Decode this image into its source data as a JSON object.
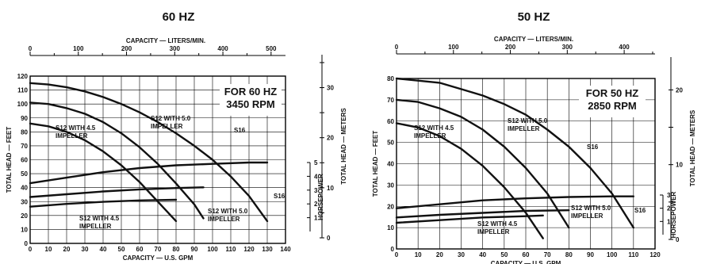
{
  "charts": [
    {
      "id": "c60",
      "heading": "60 HZ",
      "box_line1": "FOR 60 HZ",
      "box_line2": "3450 RPM",
      "top_axis_label": "CAPACITY — LITERS/MIN.",
      "bottom_axis_label": "CAPACITY — U.S. GPM",
      "left_axis_label": "TOTAL HEAD — FEET",
      "right_axis_label_hp": "HORSEPOWER",
      "right_axis_label_m": "TOTAL HEAD — METERS",
      "x_ticks": [
        0,
        10,
        20,
        30,
        40,
        50,
        60,
        70,
        80,
        90,
        100,
        110,
        120,
        130,
        140
      ],
      "y_ticks": [
        0,
        10,
        20,
        30,
        40,
        50,
        60,
        70,
        80,
        90,
        100,
        110,
        120
      ],
      "top_ticks": [
        0,
        100,
        200,
        300,
        400,
        500
      ],
      "meter_ticks": [
        0,
        10,
        20,
        30
      ],
      "hp_ticks": [
        1,
        2,
        3,
        4,
        5
      ],
      "annotations": {
        "s12_45_head": "S12 WITH 4.5\nIMPELLER",
        "s12_50_head": "S12 WITH 5.0\nIMPELLER",
        "s16_head": "S16",
        "s16_hp": "S16",
        "s12_50_hp": "S12 WITH 5.0\nIMPELLER",
        "s12_45_hp": "S12 WITH 4.5\nIMPELLER"
      }
    },
    {
      "id": "c50",
      "heading": "50 HZ",
      "box_line1": "FOR 50 HZ",
      "box_line2": "2850 RPM",
      "top_axis_label": "CAPACITY — LITERS/MIN.",
      "bottom_axis_label": "CAPACITY — U.S. GPM",
      "left_axis_label": "TOTAL HEAD — FEET",
      "right_axis_label_hp": "HORSEPOWER",
      "right_axis_label_m": "TOTAL HEAD — METERS",
      "x_ticks": [
        0,
        10,
        20,
        30,
        40,
        50,
        60,
        70,
        80,
        90,
        100,
        110,
        120
      ],
      "y_ticks": [
        0,
        10,
        20,
        30,
        40,
        50,
        60,
        70,
        80
      ],
      "top_ticks": [
        0,
        100,
        200,
        300,
        400
      ],
      "meter_ticks": [
        0,
        10,
        20
      ],
      "hp_ticks": [
        1,
        2,
        3
      ],
      "annotations": {
        "s12_45_head": "S12 WITH 4.5\nIMPELLER",
        "s12_50_head": "S12 WITH 5.0\nIMPELLER",
        "s16_head": "S16",
        "s16_hp": "S16",
        "s12_50_hp": "S12 WITH 5.0\nIMPELLER",
        "s12_45_hp": "S12 WITH 4.5\nIMPELLER"
      }
    }
  ],
  "chart_data": [
    {
      "type": "line",
      "title": "60 HZ",
      "xlabel": "CAPACITY — U.S. GPM",
      "ylabel": "TOTAL HEAD — FEET",
      "xlim": [
        0,
        140
      ],
      "ylim": [
        0,
        120
      ],
      "grid": true,
      "series": [
        {
          "name": "S12 WITH 4.5 IMPELLER",
          "kind": "head",
          "x": [
            0,
            10,
            20,
            30,
            40,
            50,
            60,
            70,
            80
          ],
          "y": [
            86,
            84,
            80,
            74,
            66,
            56,
            44,
            30,
            16
          ]
        },
        {
          "name": "S12 WITH 5.0 IMPELLER",
          "kind": "head",
          "x": [
            0,
            10,
            20,
            30,
            40,
            50,
            60,
            70,
            80,
            90,
            95
          ],
          "y": [
            101,
            100,
            97,
            93,
            87,
            79,
            69,
            57,
            43,
            28,
            18
          ]
        },
        {
          "name": "S16",
          "kind": "head",
          "x": [
            0,
            10,
            20,
            30,
            40,
            50,
            60,
            70,
            80,
            90,
            100,
            110,
            120,
            130
          ],
          "y": [
            115,
            114,
            112,
            109,
            105,
            100,
            94,
            87,
            79,
            70,
            60,
            48,
            34,
            16
          ]
        },
        {
          "name": "S16",
          "kind": "hp",
          "x": [
            0,
            20,
            40,
            60,
            80,
            100,
            120,
            130
          ],
          "y": [
            3.5,
            3.9,
            4.3,
            4.6,
            4.8,
            4.9,
            5.0,
            5.0
          ]
        },
        {
          "name": "S12 WITH 5.0 IMPELLER",
          "kind": "hp",
          "x": [
            0,
            20,
            40,
            60,
            80,
            95
          ],
          "y": [
            2.5,
            2.7,
            2.9,
            3.05,
            3.15,
            3.2
          ]
        },
        {
          "name": "S12 WITH 4.5 IMPELLER",
          "kind": "hp",
          "x": [
            0,
            20,
            40,
            60,
            80
          ],
          "y": [
            1.8,
            2.0,
            2.15,
            2.25,
            2.3
          ]
        }
      ]
    },
    {
      "type": "line",
      "title": "50 HZ",
      "xlabel": "CAPACITY — U.S. GPM",
      "ylabel": "TOTAL HEAD — FEET",
      "xlim": [
        0,
        120
      ],
      "ylim": [
        0,
        80
      ],
      "grid": true,
      "series": [
        {
          "name": "S12 WITH 4.5 IMPELLER",
          "kind": "head",
          "x": [
            0,
            10,
            20,
            30,
            40,
            50,
            60,
            68
          ],
          "y": [
            59,
            57,
            53,
            47,
            39,
            29,
            17,
            5
          ]
        },
        {
          "name": "S12 WITH 5.0 IMPELLER",
          "kind": "head",
          "x": [
            0,
            10,
            20,
            30,
            40,
            50,
            60,
            70,
            80
          ],
          "y": [
            70,
            69,
            66,
            62,
            56,
            48,
            38,
            26,
            10
          ]
        },
        {
          "name": "S16",
          "kind": "head",
          "x": [
            0,
            10,
            20,
            30,
            40,
            50,
            60,
            70,
            80,
            90,
            100,
            110
          ],
          "y": [
            80,
            79,
            78,
            75,
            72,
            68,
            63,
            56,
            48,
            38,
            26,
            10
          ]
        },
        {
          "name": "S16",
          "kind": "hp",
          "x": [
            0,
            20,
            40,
            60,
            80,
            100,
            110
          ],
          "y": [
            2.0,
            2.3,
            2.6,
            2.75,
            2.85,
            2.9,
            2.9
          ]
        },
        {
          "name": "S12 WITH 5.0 IMPELLER",
          "kind": "hp",
          "x": [
            0,
            20,
            40,
            60,
            80
          ],
          "y": [
            1.3,
            1.5,
            1.65,
            1.8,
            1.85
          ]
        },
        {
          "name": "S12 WITH 4.5 IMPELLER",
          "kind": "hp",
          "x": [
            0,
            20,
            40,
            60,
            68
          ],
          "y": [
            0.9,
            1.1,
            1.3,
            1.4,
            1.45
          ]
        }
      ]
    }
  ]
}
